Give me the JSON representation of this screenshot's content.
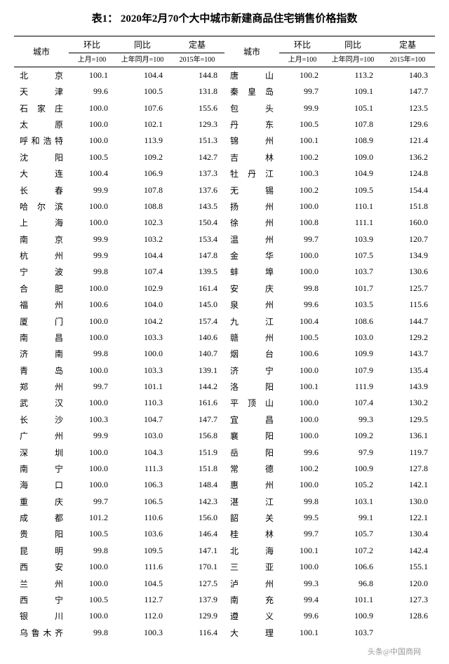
{
  "title": "表1： 2020年2月70个大中城市新建商品住宅销售价格指数",
  "headers": {
    "city": "城市",
    "hb": "环比",
    "tb": "同比",
    "dj": "定基",
    "hb_sub": "上月=100",
    "tb_sub": "上年同月=100",
    "dj_sub": "2015年=100"
  },
  "col_widths": {
    "city": "13%",
    "hb": "11%",
    "tb": "13%",
    "dj": "13%"
  },
  "colors": {
    "bg": "#ffffff",
    "text": "#000000",
    "border": "#000000",
    "watermark": "#999999"
  },
  "fonts": {
    "title_size": 15,
    "body_size": 12,
    "sub_size": 10
  },
  "rows": [
    {
      "c1": "北京",
      "v1": "100.1",
      "v2": "104.4",
      "v3": "144.8",
      "c2": "唐山",
      "v4": "100.2",
      "v5": "113.2",
      "v6": "140.3"
    },
    {
      "c1": "天津",
      "v1": "99.6",
      "v2": "100.5",
      "v3": "131.8",
      "c2": "秦皇岛",
      "v4": "99.7",
      "v5": "109.1",
      "v6": "147.7"
    },
    {
      "c1": "石家庄",
      "v1": "100.0",
      "v2": "107.6",
      "v3": "155.6",
      "c2": "包头",
      "v4": "99.9",
      "v5": "105.1",
      "v6": "123.5"
    },
    {
      "c1": "太原",
      "v1": "100.0",
      "v2": "102.1",
      "v3": "129.3",
      "c2": "丹东",
      "v4": "100.5",
      "v5": "107.8",
      "v6": "129.6"
    },
    {
      "c1": "呼和浩特",
      "v1": "100.0",
      "v2": "113.9",
      "v3": "151.3",
      "c2": "锦州",
      "v4": "100.1",
      "v5": "108.9",
      "v6": "121.4"
    },
    {
      "c1": "沈阳",
      "v1": "100.5",
      "v2": "109.2",
      "v3": "142.7",
      "c2": "吉林",
      "v4": "100.2",
      "v5": "109.0",
      "v6": "136.2"
    },
    {
      "c1": "大连",
      "v1": "100.4",
      "v2": "106.9",
      "v3": "137.3",
      "c2": "牡丹江",
      "v4": "100.3",
      "v5": "104.9",
      "v6": "124.8"
    },
    {
      "c1": "长春",
      "v1": "99.9",
      "v2": "107.8",
      "v3": "137.6",
      "c2": "无锡",
      "v4": "100.2",
      "v5": "109.5",
      "v6": "154.4"
    },
    {
      "c1": "哈尔滨",
      "v1": "100.0",
      "v2": "108.8",
      "v3": "143.5",
      "c2": "扬州",
      "v4": "100.0",
      "v5": "110.1",
      "v6": "151.8"
    },
    {
      "c1": "上海",
      "v1": "100.0",
      "v2": "102.3",
      "v3": "150.4",
      "c2": "徐州",
      "v4": "100.8",
      "v5": "111.1",
      "v6": "160.0"
    },
    {
      "c1": "南京",
      "v1": "99.9",
      "v2": "103.2",
      "v3": "153.4",
      "c2": "温州",
      "v4": "99.7",
      "v5": "103.9",
      "v6": "120.7"
    },
    {
      "c1": "杭州",
      "v1": "99.9",
      "v2": "104.4",
      "v3": "147.8",
      "c2": "金华",
      "v4": "100.0",
      "v5": "107.5",
      "v6": "134.9"
    },
    {
      "c1": "宁波",
      "v1": "99.8",
      "v2": "107.4",
      "v3": "139.5",
      "c2": "蚌埠",
      "v4": "100.0",
      "v5": "103.7",
      "v6": "130.6"
    },
    {
      "c1": "合肥",
      "v1": "100.0",
      "v2": "102.9",
      "v3": "161.4",
      "c2": "安庆",
      "v4": "99.8",
      "v5": "101.7",
      "v6": "125.7"
    },
    {
      "c1": "福州",
      "v1": "100.6",
      "v2": "104.0",
      "v3": "145.0",
      "c2": "泉州",
      "v4": "99.6",
      "v5": "103.5",
      "v6": "115.6"
    },
    {
      "c1": "厦门",
      "v1": "100.0",
      "v2": "104.2",
      "v3": "157.4",
      "c2": "九江",
      "v4": "100.4",
      "v5": "108.6",
      "v6": "144.7"
    },
    {
      "c1": "南昌",
      "v1": "100.0",
      "v2": "103.3",
      "v3": "140.6",
      "c2": "赣州",
      "v4": "100.5",
      "v5": "103.0",
      "v6": "129.2"
    },
    {
      "c1": "济南",
      "v1": "99.8",
      "v2": "100.0",
      "v3": "140.7",
      "c2": "烟台",
      "v4": "100.6",
      "v5": "109.9",
      "v6": "143.7"
    },
    {
      "c1": "青岛",
      "v1": "100.0",
      "v2": "103.3",
      "v3": "139.1",
      "c2": "济宁",
      "v4": "100.0",
      "v5": "107.9",
      "v6": "135.4"
    },
    {
      "c1": "郑州",
      "v1": "99.7",
      "v2": "101.1",
      "v3": "144.2",
      "c2": "洛阳",
      "v4": "100.1",
      "v5": "111.9",
      "v6": "143.9"
    },
    {
      "c1": "武汉",
      "v1": "100.0",
      "v2": "110.3",
      "v3": "161.6",
      "c2": "平顶山",
      "v4": "100.0",
      "v5": "107.4",
      "v6": "130.2"
    },
    {
      "c1": "长沙",
      "v1": "100.3",
      "v2": "104.7",
      "v3": "147.7",
      "c2": "宜昌",
      "v4": "100.0",
      "v5": "99.3",
      "v6": "129.5"
    },
    {
      "c1": "广州",
      "v1": "99.9",
      "v2": "103.0",
      "v3": "156.8",
      "c2": "襄阳",
      "v4": "100.0",
      "v5": "109.2",
      "v6": "136.1"
    },
    {
      "c1": "深圳",
      "v1": "100.0",
      "v2": "104.3",
      "v3": "151.9",
      "c2": "岳阳",
      "v4": "99.6",
      "v5": "97.9",
      "v6": "119.7"
    },
    {
      "c1": "南宁",
      "v1": "100.0",
      "v2": "111.3",
      "v3": "151.8",
      "c2": "常德",
      "v4": "100.2",
      "v5": "100.9",
      "v6": "127.8"
    },
    {
      "c1": "海口",
      "v1": "100.0",
      "v2": "106.3",
      "v3": "148.4",
      "c2": "惠州",
      "v4": "100.0",
      "v5": "105.2",
      "v6": "142.1"
    },
    {
      "c1": "重庆",
      "v1": "99.7",
      "v2": "106.5",
      "v3": "142.3",
      "c2": "湛江",
      "v4": "99.8",
      "v5": "103.1",
      "v6": "130.0"
    },
    {
      "c1": "成都",
      "v1": "101.2",
      "v2": "110.6",
      "v3": "156.0",
      "c2": "韶关",
      "v4": "99.5",
      "v5": "99.1",
      "v6": "122.1"
    },
    {
      "c1": "贵阳",
      "v1": "100.5",
      "v2": "103.6",
      "v3": "146.4",
      "c2": "桂林",
      "v4": "99.7",
      "v5": "105.7",
      "v6": "130.4"
    },
    {
      "c1": "昆明",
      "v1": "99.8",
      "v2": "109.5",
      "v3": "147.1",
      "c2": "北海",
      "v4": "100.1",
      "v5": "107.2",
      "v6": "142.4"
    },
    {
      "c1": "西安",
      "v1": "100.0",
      "v2": "111.6",
      "v3": "170.1",
      "c2": "三亚",
      "v4": "100.0",
      "v5": "106.6",
      "v6": "155.1"
    },
    {
      "c1": "兰州",
      "v1": "100.0",
      "v2": "104.5",
      "v3": "127.5",
      "c2": "泸州",
      "v4": "99.3",
      "v5": "96.8",
      "v6": "120.0"
    },
    {
      "c1": "西宁",
      "v1": "100.5",
      "v2": "112.7",
      "v3": "137.9",
      "c2": "南充",
      "v4": "99.4",
      "v5": "101.1",
      "v6": "127.3"
    },
    {
      "c1": "银川",
      "v1": "100.0",
      "v2": "112.0",
      "v3": "129.9",
      "c2": "遵义",
      "v4": "99.6",
      "v5": "100.9",
      "v6": "128.6"
    },
    {
      "c1": "乌鲁木齐",
      "v1": "99.8",
      "v2": "100.3",
      "v3": "116.4",
      "c2": "大理",
      "v4": "100.1",
      "v5": "103.7",
      "v6": ""
    }
  ],
  "watermark": "头条@中国商网"
}
